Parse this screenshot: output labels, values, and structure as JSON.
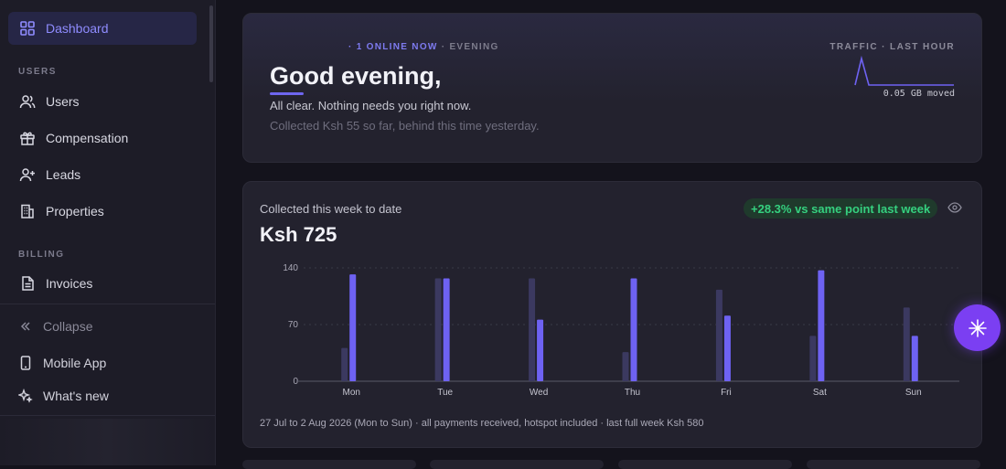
{
  "sidebar": {
    "items": [
      {
        "label": "Dashboard",
        "icon": "dashboard-icon",
        "active": true
      },
      {
        "label": "Users",
        "icon": "users-icon"
      },
      {
        "label": "Compensation",
        "icon": "gift-icon"
      },
      {
        "label": "Leads",
        "icon": "user-plus-icon"
      },
      {
        "label": "Properties",
        "icon": "building-icon"
      },
      {
        "label": "Invoices",
        "icon": "file-icon"
      }
    ],
    "sections": {
      "users": "USERS",
      "billing": "BILLING"
    },
    "bottom": [
      {
        "label": "Collapse",
        "icon": "chevrons-left-icon"
      },
      {
        "label": "Mobile App",
        "icon": "phone-icon"
      },
      {
        "label": "What's new",
        "icon": "sparkles-icon"
      }
    ]
  },
  "greeting": {
    "online": "· 1 ONLINE NOW",
    "period": "· EVENING",
    "title": "Good evening,",
    "subtitle": "All clear. Nothing needs you right now.",
    "collected_note": "Collected Ksh 55 so far, behind this time yesterday.",
    "traffic_label": "TRAFFIC · LAST HOUR",
    "traffic_value": "0.05 GB moved"
  },
  "week": {
    "label": "Collected this week to date",
    "total": "Ksh 725",
    "badge": "+28.3% vs same point last week",
    "footnote": "27 Jul to 2 Aug 2026 (Mon to Sun) · all payments received, hotspot included · last full week Ksh 580"
  },
  "colors": {
    "accent": "#6e62f2",
    "previous": "#3b3960",
    "positive": "#35d07f"
  },
  "chart_data": {
    "type": "bar",
    "categories": [
      "Mon",
      "Tue",
      "Wed",
      "Thu",
      "Fri",
      "Sat",
      "Sun"
    ],
    "series": [
      {
        "values": [
          41,
          127,
          127,
          36,
          113,
          56,
          91
        ]
      },
      {
        "values": [
          132,
          127,
          76,
          127,
          81,
          137,
          56
        ]
      }
    ],
    "yticks": [
      "140",
      "70",
      "0"
    ],
    "ylim": [
      0,
      140
    ],
    "grid": true
  }
}
